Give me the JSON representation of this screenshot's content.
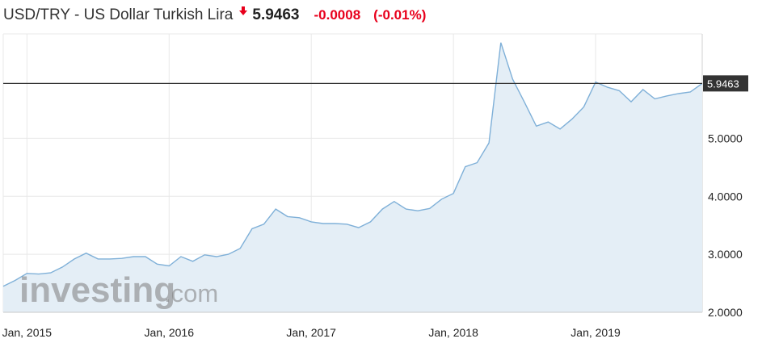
{
  "header": {
    "title": "USD/TRY - US Dollar Turkish Lira",
    "direction_icon": "down-arrow-icon",
    "price": "5.9463",
    "change": "-0.0008",
    "change_pct": "(-0.01%)"
  },
  "colors": {
    "negative": "#e8001c",
    "line": "#7fb0d8",
    "area": "#e4eef6",
    "grid": "#e8e8e8",
    "current_line": "#333333",
    "current_label_bg": "#333333"
  },
  "watermark": {
    "text_main": "investing",
    "text_suffix": ".com"
  },
  "chart_data": {
    "type": "area",
    "title": "",
    "xlabel": "",
    "ylabel": "",
    "x_ticks": [
      "Jan, 2015",
      "Jan, 2016",
      "Jan, 2017",
      "Jan, 2018",
      "Jan, 2019"
    ],
    "y_ticks": [
      "2.0000",
      "3.0000",
      "4.0000",
      "5.0000"
    ],
    "ylim": [
      2.0,
      6.8
    ],
    "x_range": [
      "2014-11",
      "2019-10"
    ],
    "current_value": 5.9463,
    "current_value_label": "5.9463",
    "grid": true,
    "series": [
      {
        "x": [
          "2014-11",
          "2014-12",
          "2015-01",
          "2015-02",
          "2015-03",
          "2015-04",
          "2015-05",
          "2015-06",
          "2015-07",
          "2015-08",
          "2015-09",
          "2015-10",
          "2015-11",
          "2015-12",
          "2016-01",
          "2016-02",
          "2016-03",
          "2016-04",
          "2016-05",
          "2016-06",
          "2016-07",
          "2016-08",
          "2016-09",
          "2016-10",
          "2016-11",
          "2016-12",
          "2017-01",
          "2017-02",
          "2017-03",
          "2017-04",
          "2017-05",
          "2017-06",
          "2017-07",
          "2017-08",
          "2017-09",
          "2017-10",
          "2017-11",
          "2017-12",
          "2018-01",
          "2018-02",
          "2018-03",
          "2018-04",
          "2018-05",
          "2018-06",
          "2018-07",
          "2018-08",
          "2018-09",
          "2018-10",
          "2018-11",
          "2018-12",
          "2019-01",
          "2019-02",
          "2019-03",
          "2019-04",
          "2019-05",
          "2019-06",
          "2019-07",
          "2019-08",
          "2019-09",
          "2019-10"
        ],
        "values": [
          2.45,
          2.55,
          2.67,
          2.66,
          2.68,
          2.78,
          2.92,
          3.02,
          2.92,
          2.92,
          2.93,
          2.96,
          2.96,
          2.83,
          2.8,
          2.96,
          2.88,
          2.99,
          2.96,
          3.0,
          3.1,
          3.44,
          3.52,
          3.78,
          3.65,
          3.63,
          3.56,
          3.53,
          3.53,
          3.52,
          3.46,
          3.56,
          3.78,
          3.91,
          3.78,
          3.75,
          3.79,
          3.95,
          4.05,
          4.51,
          4.58,
          4.92,
          6.65,
          6.02,
          5.62,
          5.21,
          5.28,
          5.16,
          5.33,
          5.54,
          5.97,
          5.88,
          5.82,
          5.63,
          5.84,
          5.68,
          5.73,
          5.77,
          5.8,
          5.9463
        ]
      }
    ]
  }
}
